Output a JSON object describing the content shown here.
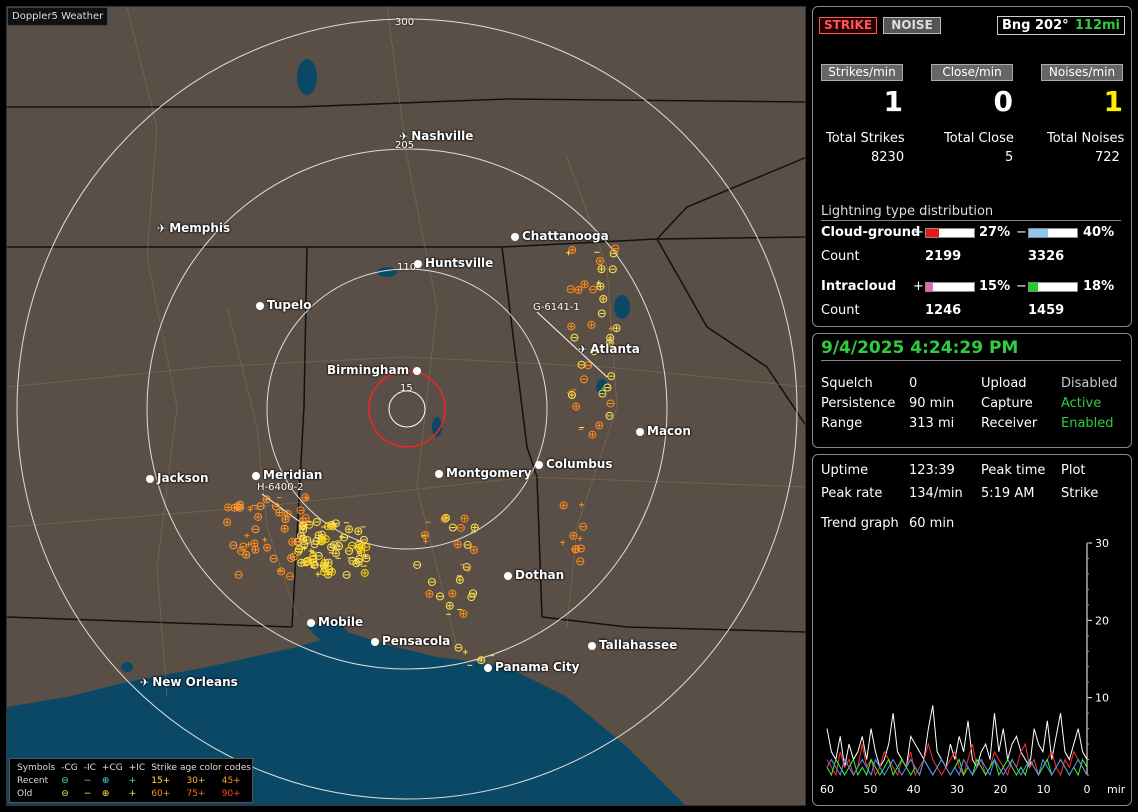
{
  "map": {
    "title": "Doppler5 Weather",
    "rings": [
      {
        "label": "300"
      },
      {
        "label": "205"
      },
      {
        "label": "110"
      },
      {
        "label": "15"
      }
    ],
    "cities": [
      {
        "name": "Nashville",
        "kind": "plane"
      },
      {
        "name": "Memphis",
        "kind": "plane"
      },
      {
        "name": "Chattanooga",
        "kind": "dot"
      },
      {
        "name": "Huntsville",
        "kind": "dot"
      },
      {
        "name": "Tupelo",
        "kind": "dot"
      },
      {
        "name": "Atlanta",
        "kind": "plane"
      },
      {
        "name": "Birmingham",
        "kind": "dot-right"
      },
      {
        "name": "Macon",
        "kind": "dot"
      },
      {
        "name": "Jackson",
        "kind": "dot"
      },
      {
        "name": "Meridian",
        "kind": "dot"
      },
      {
        "name": "Montgomery",
        "kind": "dot"
      },
      {
        "name": "Columbus",
        "kind": "dot"
      },
      {
        "name": "Dothan",
        "kind": "dot"
      },
      {
        "name": "Mobile",
        "kind": "dot"
      },
      {
        "name": "Pensacola",
        "kind": "dot"
      },
      {
        "name": "Tallahassee",
        "kind": "dot"
      },
      {
        "name": "Panama City",
        "kind": "dot"
      },
      {
        "name": "New Orleans",
        "kind": "plane"
      }
    ],
    "stations": [
      "G-6141-1",
      "H-6400-2"
    ],
    "legend": {
      "header": [
        "Symbols",
        "-CG",
        "-IC",
        "+CG",
        "+IC",
        "Strike age color codes"
      ],
      "recent": {
        "label": "Recent",
        "ages": [
          "15+",
          "30+",
          "45+"
        ]
      },
      "old": {
        "label": "Old",
        "ages": [
          "60+",
          "75+",
          "90+"
        ]
      }
    },
    "colors": {
      "land": "#5a4f47",
      "water": "#0b4866",
      "strike_recent": "#ffe34d",
      "strike_old": "#ff8c1a",
      "center_ring": "#ff2020"
    }
  },
  "top_panel": {
    "strike_button": "STRIKE",
    "noise_button": "NOISE",
    "bearing": "Bng 202°",
    "distance": "112mi",
    "rate_labels": [
      "Strikes/min",
      "Close/min",
      "Noises/min"
    ],
    "rates": [
      "1",
      "0",
      "1"
    ],
    "total_labels": [
      "Total Strikes",
      "Total Close",
      "Total Noises"
    ],
    "totals": [
      "8230",
      "5",
      "722"
    ],
    "distribution_title": "Lightning type distribution",
    "cloud_ground_label": "Cloud-ground",
    "intracloud_label": "Intracloud",
    "count_label": "Count",
    "plus": "+",
    "minus": "−",
    "cg_pos_pct": "27%",
    "cg_neg_pct": "40%",
    "cg_pos_count": "2199",
    "cg_neg_count": "3326",
    "ic_pos_pct": "15%",
    "ic_neg_pct": "18%",
    "ic_pos_count": "1246",
    "ic_neg_count": "1459",
    "bar_levels": {
      "cg_pos": 0.27,
      "cg_neg": 0.4,
      "ic_pos": 0.15,
      "ic_neg": 0.18
    }
  },
  "status_panel": {
    "datetime": "9/4/2025 4:24:29 PM",
    "squelch_label": "Squelch",
    "squelch": "0",
    "upload_label": "Upload",
    "upload": "Disabled",
    "persistence_label": "Persistence",
    "persistence": "90 min",
    "capture_label": "Capture",
    "capture": "Active",
    "range_label": "Range",
    "range": "313 mi",
    "receiver_label": "Receiver",
    "receiver": "Enabled"
  },
  "stats_panel": {
    "uptime_label": "Uptime",
    "uptime": "123:39",
    "peak_time_label": "Peak time",
    "plot_label": "Plot",
    "peak_rate_label": "Peak rate",
    "peak_rate": "134/min",
    "peak_time": "5:19 AM",
    "plot": "Strike",
    "trend_label": "Trend graph",
    "trend_window": "60 min"
  },
  "chart_data": {
    "type": "line",
    "title": "",
    "x_ticks": [
      "60",
      "50",
      "40",
      "30",
      "20",
      "10",
      "0"
    ],
    "x_unit": "min",
    "y_ticks": [
      "30",
      "20",
      "10"
    ],
    "ylim": [
      0,
      30
    ],
    "xlim": [
      60,
      0
    ],
    "series": [
      {
        "color": "#ffffff",
        "values": [
          6,
          3,
          2,
          5,
          1,
          4,
          2,
          3,
          5,
          2,
          6,
          3,
          1,
          2,
          4,
          8,
          3,
          2,
          1,
          5,
          4,
          3,
          2,
          6,
          9,
          3,
          2,
          1,
          4,
          2,
          5,
          3,
          7,
          2,
          1,
          3,
          4,
          2,
          8,
          3,
          6,
          2,
          4,
          5,
          3,
          2,
          1,
          6,
          4,
          3,
          7,
          2,
          5,
          8,
          3,
          2,
          4,
          6,
          3,
          2
        ]
      },
      {
        "color": "#ff3030",
        "values": [
          2,
          1,
          0,
          3,
          1,
          2,
          0,
          1,
          4,
          1,
          2,
          0,
          1,
          3,
          2,
          1,
          0,
          2,
          1,
          3,
          0,
          1,
          2,
          4,
          2,
          1,
          0,
          1,
          2,
          3,
          1,
          0,
          2,
          4,
          1,
          2,
          0,
          1,
          3,
          2,
          1,
          0,
          2,
          1,
          3,
          4,
          1,
          2,
          0,
          1,
          2,
          3,
          1,
          0,
          2,
          1,
          3,
          2,
          1,
          0
        ]
      },
      {
        "color": "#30ff30",
        "values": [
          1,
          0,
          2,
          1,
          0,
          1,
          2,
          0,
          1,
          0,
          2,
          1,
          0,
          1,
          2,
          0,
          1,
          2,
          1,
          0,
          1,
          0,
          2,
          1,
          0,
          1,
          2,
          1,
          0,
          1,
          2,
          0,
          1,
          0,
          2,
          1,
          0,
          1,
          2,
          0,
          1,
          2,
          1,
          0,
          1,
          0,
          2,
          1,
          0,
          1,
          2,
          0,
          1,
          2,
          1,
          0,
          1,
          0,
          2,
          1
        ]
      },
      {
        "color": "#5a8cff",
        "values": [
          1,
          2,
          1,
          0,
          2,
          1,
          0,
          1,
          2,
          1,
          0,
          2,
          1,
          0,
          1,
          2,
          1,
          0,
          1,
          2,
          1,
          0,
          2,
          1,
          0,
          1,
          2,
          1,
          0,
          1,
          0,
          2,
          1,
          0,
          1,
          2,
          1,
          0,
          2,
          1,
          0,
          1,
          2,
          1,
          0,
          1,
          2,
          1,
          0,
          2,
          1,
          0,
          1,
          2,
          1,
          0,
          1,
          2,
          1,
          0
        ]
      }
    ]
  }
}
